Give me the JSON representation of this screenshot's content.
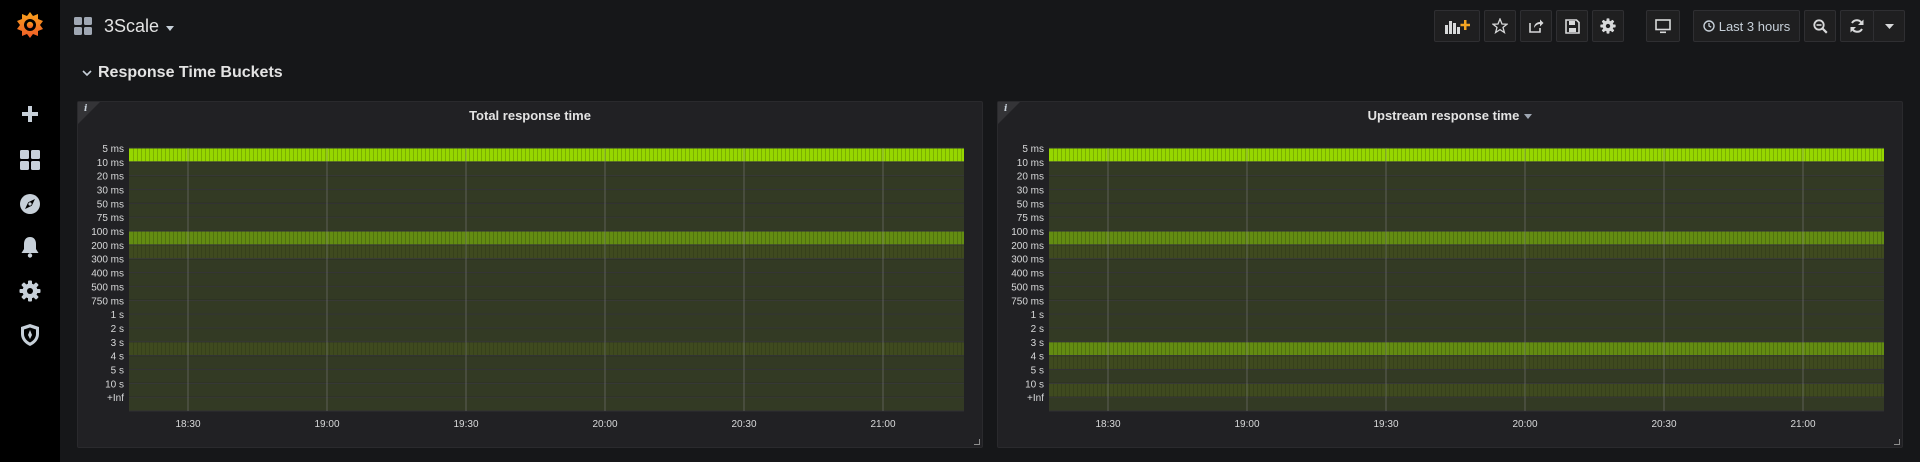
{
  "sidebar": {
    "logo": "grafana-logo-icon",
    "items": [
      {
        "name": "create",
        "icon": "plus-icon"
      },
      {
        "name": "dashboards",
        "icon": "dashboards-icon"
      },
      {
        "name": "explore",
        "icon": "compass-icon"
      },
      {
        "name": "alerting",
        "icon": "bell-icon"
      },
      {
        "name": "configuration",
        "icon": "gear-icon"
      },
      {
        "name": "server-admin",
        "icon": "shield-icon"
      }
    ]
  },
  "navbar": {
    "dashboard_title": "3Scale",
    "buttons": [
      "add-panel-icon",
      "star-icon",
      "share-icon",
      "save-icon",
      "settings-icon",
      "tv-mode-icon"
    ],
    "time_range": "Last 3 hours",
    "zoom_icon": "zoom-out-icon",
    "refresh_icon": "refresh-icon"
  },
  "row": {
    "title": "Response Time Buckets",
    "collapsed": false
  },
  "colors": {
    "bucket_bright": "#96d600",
    "bucket_medium": "#638c12",
    "bucket_dim": "#3f4a1f",
    "bucket_empty": "#333a24"
  },
  "panels": [
    {
      "title": "Total response time",
      "has_menu": false,
      "chart_data": {
        "type": "heatmap",
        "y_buckets": [
          "5 ms",
          "10 ms",
          "20 ms",
          "30 ms",
          "50 ms",
          "75 ms",
          "100 ms",
          "200 ms",
          "300 ms",
          "400 ms",
          "500 ms",
          "750 ms",
          "1 s",
          "2 s",
          "3 s",
          "4 s",
          "5 s",
          "10 s",
          "+Inf"
        ],
        "x_ticks": [
          "18:30",
          "19:00",
          "19:30",
          "20:00",
          "20:30",
          "21:00"
        ],
        "intensity": [
          4,
          1,
          1,
          1,
          1,
          1,
          3,
          2,
          1,
          1,
          1,
          1,
          1,
          1,
          2,
          1,
          1,
          1,
          1
        ]
      }
    },
    {
      "title": "Upstream response time",
      "has_menu": true,
      "chart_data": {
        "type": "heatmap",
        "y_buckets": [
          "5 ms",
          "10 ms",
          "20 ms",
          "30 ms",
          "50 ms",
          "75 ms",
          "100 ms",
          "200 ms",
          "300 ms",
          "400 ms",
          "500 ms",
          "750 ms",
          "1 s",
          "2 s",
          "3 s",
          "4 s",
          "5 s",
          "10 s",
          "+Inf"
        ],
        "x_ticks": [
          "18:30",
          "19:00",
          "19:30",
          "20:00",
          "20:30",
          "21:00"
        ],
        "intensity": [
          4,
          1,
          1,
          1,
          1,
          1,
          3,
          2,
          1,
          1,
          1,
          1,
          1,
          1,
          3,
          2,
          1,
          2,
          1
        ]
      }
    }
  ]
}
